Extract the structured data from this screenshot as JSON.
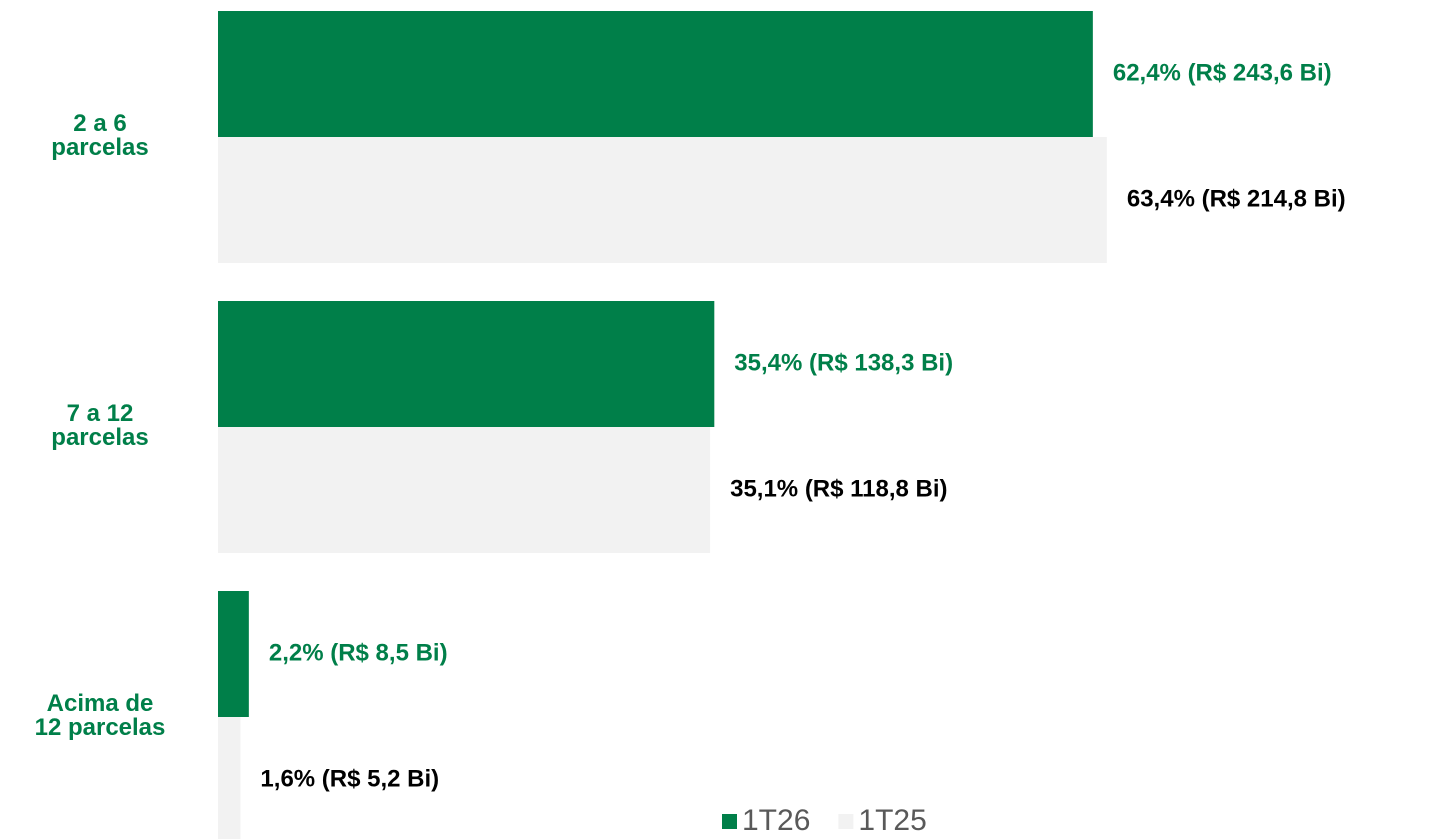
{
  "chart_data": {
    "type": "bar",
    "orientation": "horizontal",
    "categories": [
      "2 a 6\nparcelas",
      "7 a 12\nparcelas",
      "Acima de\n12 parcelas"
    ],
    "series": [
      {
        "name": "1T26",
        "color": "#007f49",
        "values": [
          62.4,
          35.4,
          2.2
        ],
        "value_labels": [
          "62,4% (R$ 243,6 Bi)",
          "35,4% (R$ 138,3 Bi)",
          "2,2% (R$ 8,5 Bi)"
        ]
      },
      {
        "name": "1T25",
        "color": "#f2f2f2",
        "values": [
          63.4,
          35.1,
          1.6
        ],
        "value_labels": [
          "63,4% (R$ 214,8 Bi)",
          "35,1% (R$ 118,8 Bi)",
          "1,6% (R$ 5,2 Bi)"
        ]
      }
    ],
    "label_colors": [
      "#007f49",
      "#000000"
    ],
    "category_color": "#007f49",
    "legend": "bottom"
  }
}
